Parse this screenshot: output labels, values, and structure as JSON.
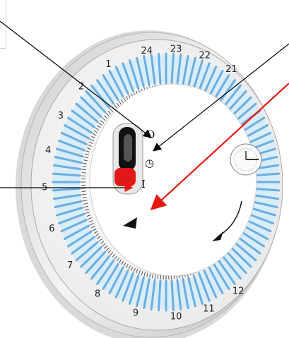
{
  "dial": {
    "hour_labels": [
      "24",
      "23",
      "22",
      "21",
      "1",
      "2",
      "3",
      "4",
      "5",
      "6",
      "7",
      "8",
      "9",
      "10",
      "11",
      "12"
    ],
    "switch_marks": {
      "off": "O",
      "timer": "◷",
      "on": "I"
    }
  },
  "icons": {
    "clock": "clock-icon",
    "rotation": "rotation-arrow-icon",
    "pointer": "triangle-pointer-icon"
  },
  "colors": {
    "ring_blue": "#6aaee0",
    "switch_red": "#e01818",
    "annotation_red": "#e81a10",
    "annotation_black": "#000000"
  }
}
